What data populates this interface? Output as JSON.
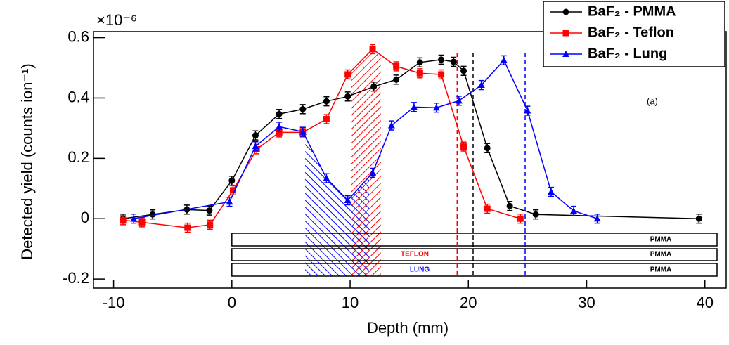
{
  "chart_data": {
    "type": "line",
    "x_label": "Depth (mm)",
    "y_label": "Detected yield (counts ion⁻¹)",
    "y_multiplier": "×10⁻⁶",
    "annotation": "(a)",
    "xlim": [
      -11.7,
      41.8
    ],
    "ylim": [
      -0.23,
      0.62
    ],
    "xticks": [
      -10,
      0,
      10,
      20,
      30,
      40
    ],
    "yticks": [
      -0.2,
      0,
      0.2,
      0.4,
      0.6
    ],
    "series": [
      {
        "name": "BaF₂ - PMMA",
        "color": "#000000",
        "marker": "circle",
        "error": 0.015,
        "x": [
          -9.2,
          -6.7,
          -3.8,
          -1.9,
          0,
          2,
          4,
          6,
          8,
          9.8,
          12,
          13.9,
          15.9,
          17.7,
          18.75,
          19.6,
          21.6,
          23.5,
          25.7,
          39.5
        ],
        "values": [
          0,
          0.014,
          0.03,
          0.027,
          0.126,
          0.276,
          0.347,
          0.363,
          0.389,
          0.405,
          0.438,
          0.461,
          0.518,
          0.527,
          0.52,
          0.49,
          0.234,
          0.042,
          0.014,
          0
        ]
      },
      {
        "name": "BaF₂ - Teflon",
        "color": "#ff0000",
        "marker": "square",
        "error": 0.015,
        "x": [
          -9.2,
          -7.6,
          -3.75,
          -1.85,
          0.1,
          2.1,
          4,
          6,
          8,
          9.8,
          11.9,
          13.9,
          15.9,
          17.7,
          19.6,
          21.6,
          24.4
        ],
        "values": [
          -0.005,
          -0.012,
          -0.03,
          -0.02,
          0.094,
          0.23,
          0.286,
          0.286,
          0.33,
          0.478,
          0.562,
          0.505,
          0.482,
          0.478,
          0.239,
          0.033,
          0
        ]
      },
      {
        "name": "BaF₂ - Lung",
        "color": "#0000ff",
        "marker": "triangle",
        "error": 0.015,
        "x": [
          -8.3,
          -0.2,
          2,
          4,
          6,
          8,
          9.8,
          11.9,
          13.5,
          15.4,
          17.3,
          19.2,
          21.1,
          23,
          25,
          27,
          28.9,
          30.9
        ],
        "values": [
          0,
          0.056,
          0.24,
          0.305,
          0.288,
          0.134,
          0.061,
          0.152,
          0.309,
          0.37,
          0.368,
          0.391,
          0.443,
          0.525,
          0.358,
          0.089,
          0.026,
          0
        ]
      }
    ],
    "vlines": [
      {
        "x": 19.05,
        "color": "#ff0000"
      },
      {
        "x": 20.4,
        "color": "#000000"
      },
      {
        "x": 24.8,
        "color": "#0000ff"
      }
    ],
    "hatched_regions": [
      {
        "x": [
          6.2,
          11.6
        ],
        "color": "#0000ff"
      },
      {
        "x": [
          10.1,
          12.6
        ],
        "color": "#ff0000"
      }
    ],
    "phantom_labels": [
      {
        "text": "PMMA",
        "color": "#000000"
      },
      {
        "text": "TEFLON",
        "color": "#ff0000"
      },
      {
        "text": "PMMA",
        "color": "#000000"
      },
      {
        "text": "LUNG",
        "color": "#0000ff"
      },
      {
        "text": "PMMA",
        "color": "#000000"
      }
    ]
  }
}
